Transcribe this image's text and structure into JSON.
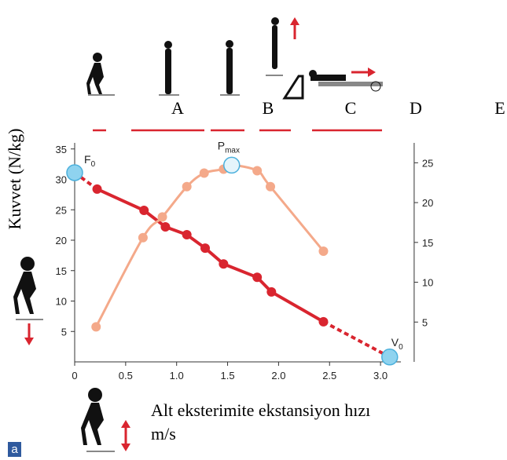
{
  "chart_data": {
    "type": "scatter",
    "xticks": [
      0,
      {
        "value": 0.5,
        "label": "0.5"
      },
      {
        "value": 1,
        "label": "1.0"
      },
      {
        "value": 1.5,
        "label": "1.5"
      },
      {
        "value": 2,
        "label": "2.0"
      },
      {
        "value": 2.5,
        "label": "2.5"
      },
      {
        "value": 3,
        "label": "3.0"
      }
    ],
    "xlim": [
      0,
      3.2
    ],
    "ylim": [
      0,
      36
    ],
    "yticks": [
      5,
      10,
      15,
      20,
      25,
      30,
      35
    ],
    "y2lim": [
      0,
      27.5
    ],
    "y2ticks": [
      5,
      10,
      15,
      20,
      25
    ],
    "ylabel": "Kuvvet (N/kg)",
    "xlabel": [
      "Alt eksterimite ekstansiyon hızı",
      "m/s"
    ],
    "phase_labels": [
      "A",
      "B",
      "C",
      "D",
      "E"
    ],
    "panel_label": "a",
    "series": [
      {
        "color": "#d9252f",
        "axis": "y",
        "x": [
          0,
          0.22,
          0.68,
          0.89,
          1.1,
          1.28,
          1.46,
          1.79,
          1.93,
          2.44,
          3.09
        ],
        "values": [
          31.1,
          28.4,
          24.9,
          22.2,
          20.9,
          18.7,
          16.1,
          13.9,
          11.5,
          6.6,
          0.8
        ]
      },
      {
        "color": "#f4a98a",
        "axis": "y2",
        "x": [
          0.21,
          0.67,
          0.86,
          1.1,
          1.27,
          1.46,
          1.54,
          1.79,
          1.92,
          2.44
        ],
        "values": [
          4.4,
          15.6,
          18.2,
          22,
          23.7,
          24.2,
          24.7,
          24,
          22,
          13.9
        ]
      }
    ],
    "annotations": [
      {
        "text": "F",
        "sub": "0",
        "series": 0,
        "point": 0
      },
      {
        "text": "P",
        "sub": "max",
        "series": 1,
        "point": 6
      },
      {
        "text": "V",
        "sub": "0",
        "series": 0,
        "point": 10
      }
    ]
  }
}
